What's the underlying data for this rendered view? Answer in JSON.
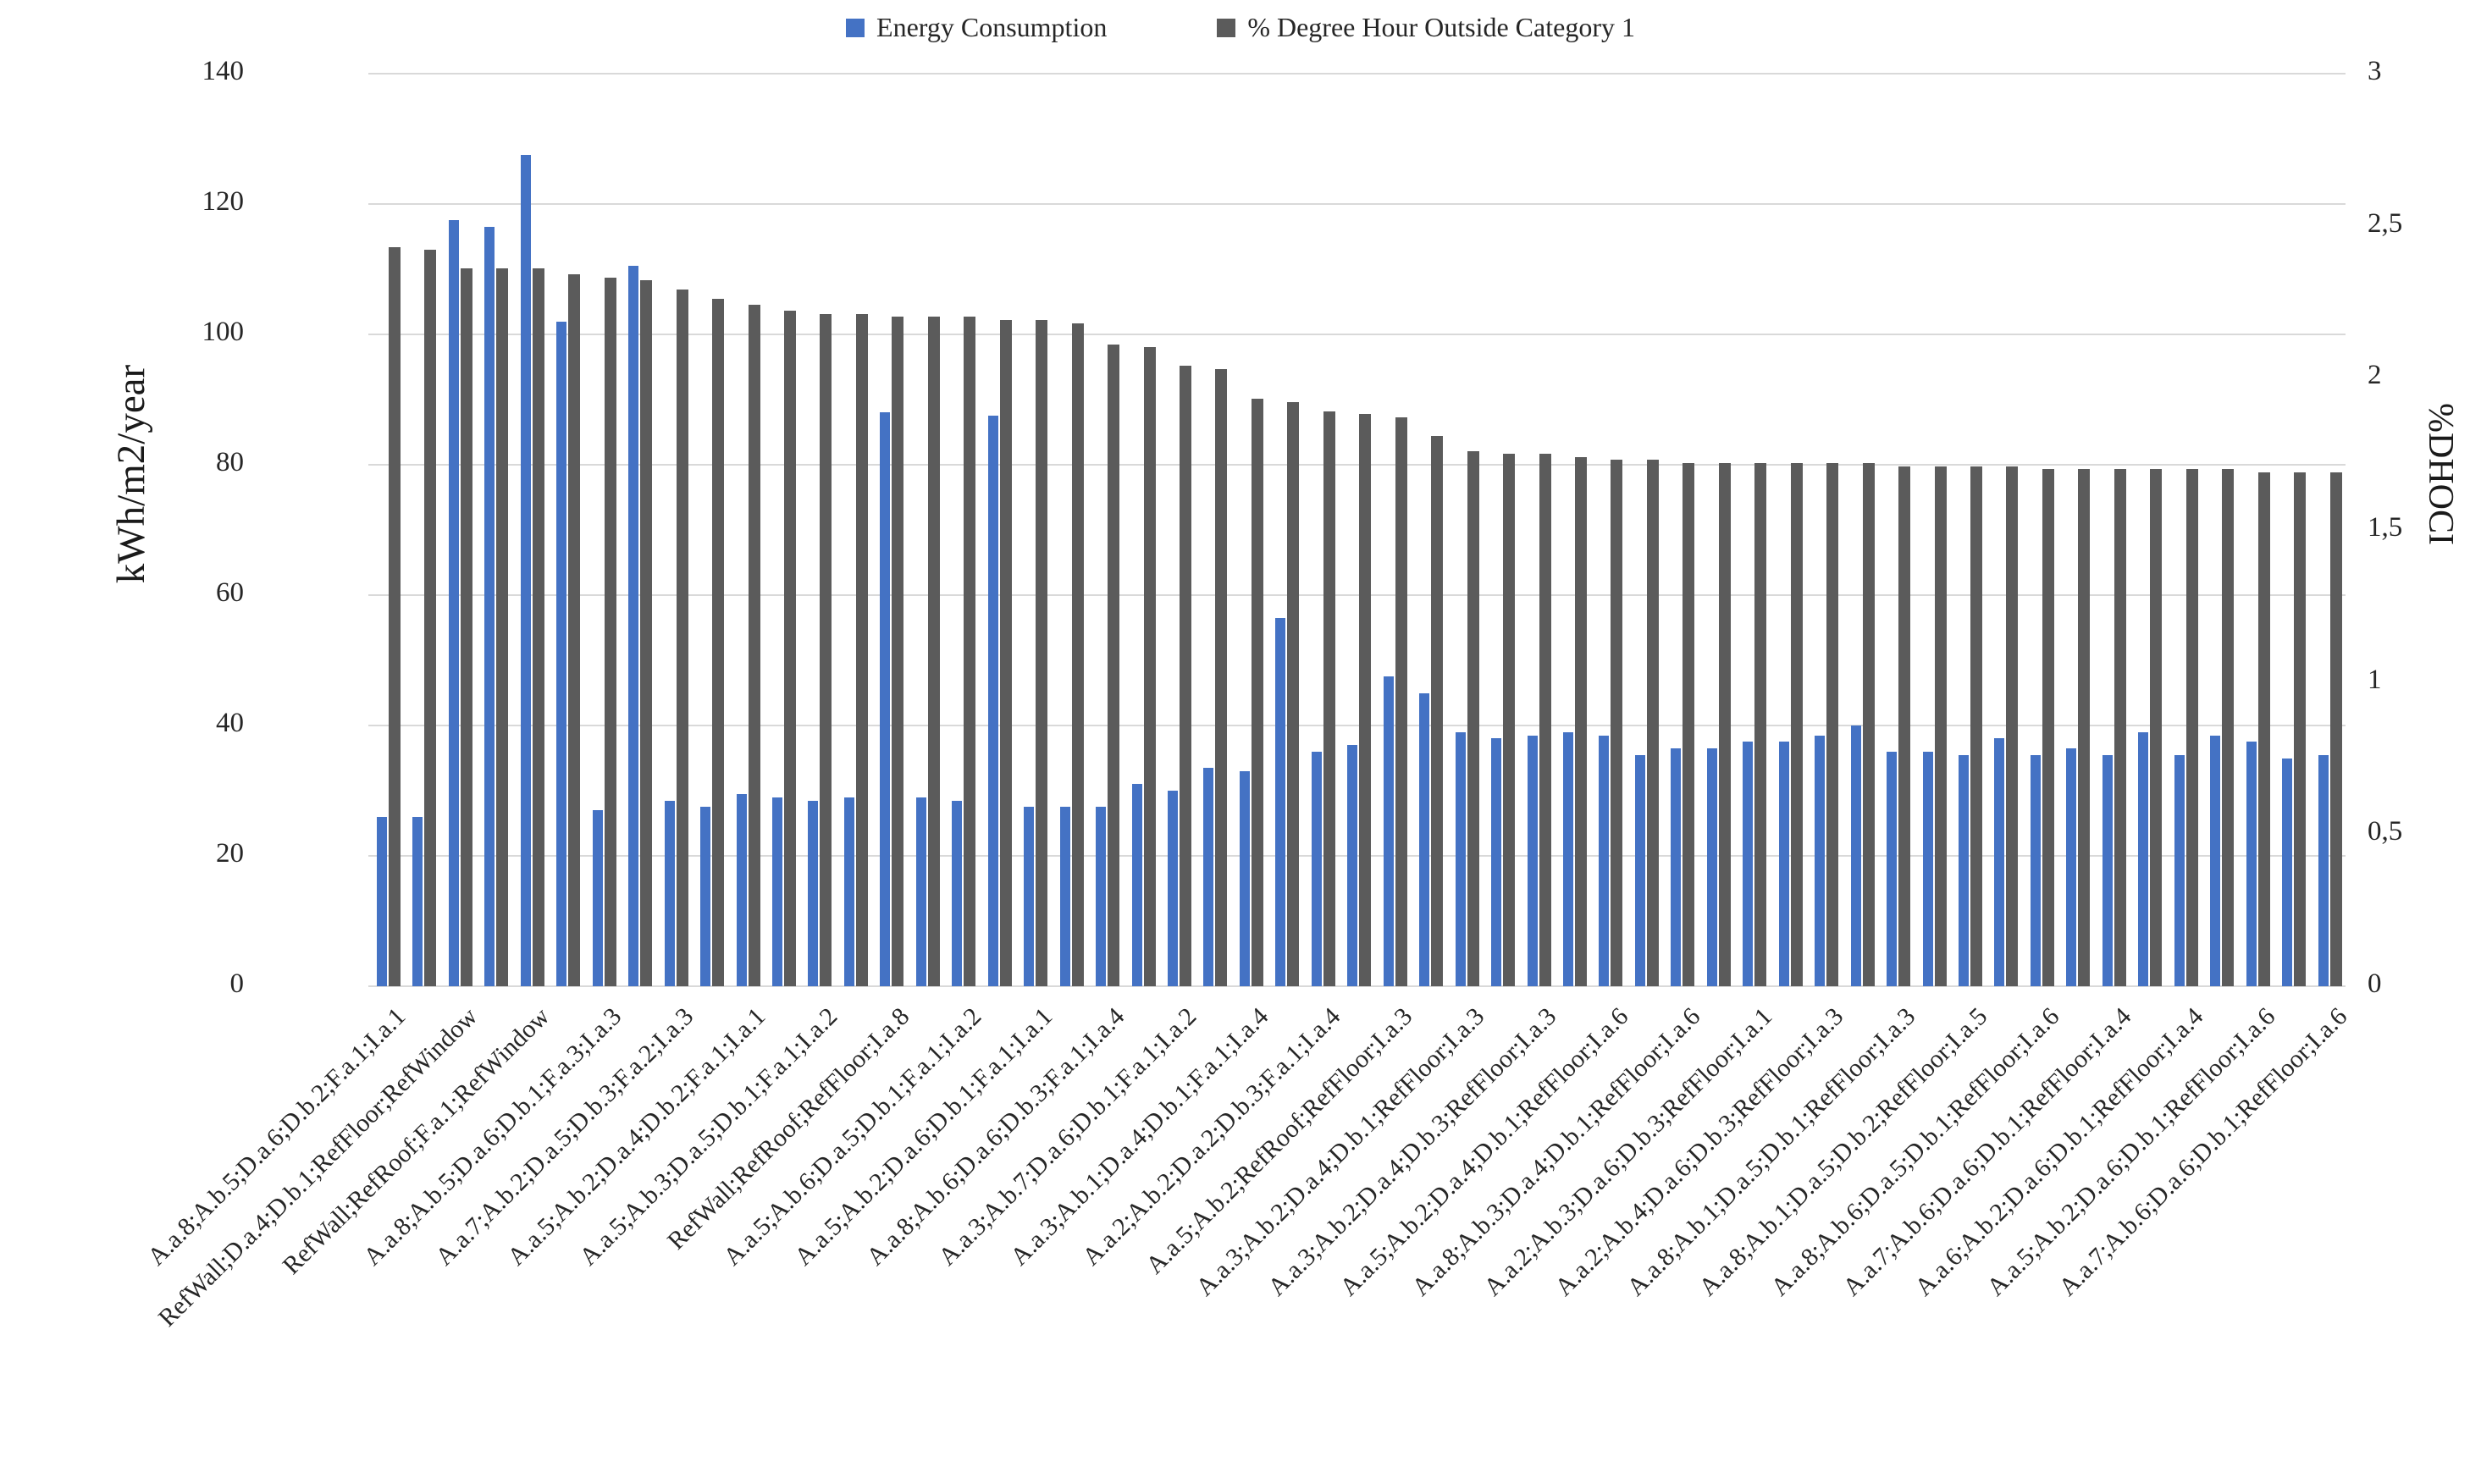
{
  "legend": {
    "items": [
      {
        "name": "energy-consumption",
        "label": "Energy Consumption",
        "color": "#4472c4"
      },
      {
        "name": "dhoci",
        "label": "% Degree Hour Outside Category 1",
        "color": "#5b5b5b"
      }
    ]
  },
  "left_axis": {
    "title": "kWh/m2/year",
    "tick_labels": [
      "140",
      "120",
      "100",
      "80",
      "60",
      "40",
      "20",
      "0"
    ],
    "tick_values": [
      140,
      120,
      100,
      80,
      60,
      40,
      20,
      0
    ],
    "max": 140,
    "min": 0
  },
  "right_axis": {
    "title": "%DHOCI",
    "tick_labels": [
      "3",
      "2,5",
      "2",
      "1,5",
      "1",
      "0,5",
      "0"
    ],
    "tick_values": [
      3,
      2.5,
      2,
      1.5,
      1,
      0.5,
      0
    ],
    "max": 3,
    "min": 0
  },
  "chart_data": {
    "type": "bar",
    "dual_axis": true,
    "grid": "horizontal",
    "legend_position": "top-center",
    "num_categories": 55,
    "x_label_interval": 2,
    "x_tick_labels": [
      "A.a.8;A.b.5;D.a.6;D.b.2;F.a.1;I.a.1",
      "RefWall;D.a.4;D.b.1;RefFloor;RefWindow",
      "RefWall;RefRoof;F.a.1;RefWindow",
      "A.a.8;A.b.5;D.a.6;D.b.1;F.a.3;I.a.3",
      "A.a.7;A.b.2;D.a.5;D.b.3;F.a.2;I.a.3",
      "A.a.5;A.b.2;D.a.4;D.b.2;F.a.1;I.a.1",
      "A.a.5;A.b.3;D.a.5;D.b.1;F.a.1;I.a.2",
      "RefWall;RefRoof;RefFloor;I.a.8",
      "A.a.5;A.b.6;D.a.5;D.b.1;F.a.1;I.a.2",
      "A.a.5;A.b.2;D.a.6;D.b.1;F.a.1;I.a.1",
      "A.a.8;A.b.6;D.a.6;D.b.3;F.a.1;I.a.4",
      "A.a.3;A.b.7;D.a.6;D.b.1;F.a.1;I.a.2",
      "A.a.3;A.b.1;D.a.4;D.b.1;F.a.1;I.a.4",
      "A.a.2;A.b.2;D.a.2;D.b.3;F.a.1;I.a.4",
      "A.a.5;A.b.2;RefRoof;RefFloor;I.a.3",
      "A.a.3;A.b.2;D.a.4;D.b.1;RefFloor;I.a.3",
      "A.a.3;A.b.2;D.a.4;D.b.3;RefFloor;I.a.3",
      "A.a.5;A.b.2;D.a.4;D.b.1;RefFloor;I.a.6",
      "A.a.8;A.b.3;D.a.4;D.b.1;RefFloor;I.a.6",
      "A.a.2;A.b.3;D.a.6;D.b.3;RefFloor;I.a.1",
      "A.a.2;A.b.4;D.a.6;D.b.3;RefFloor;I.a.3",
      "A.a.8;A.b.1;D.a.5;D.b.1;RefFloor;I.a.3",
      "A.a.8;A.b.1;D.a.5;D.b.2;RefFloor;I.a.5",
      "A.a.8;A.b.6;D.a.5;D.b.1;RefFloor;I.a.6",
      "A.a.7;A.b.6;D.a.6;D.b.1;RefFloor;I.a.4",
      "A.a.6;A.b.2;D.a.6;D.b.1;RefFloor;I.a.4",
      "A.a.5;A.b.2;D.a.6;D.b.1;RefFloor;I.a.6",
      "A.a.7;A.b.6;D.a.6;D.b.1;RefFloor;I.a.6"
    ],
    "series": [
      {
        "name": "Energy Consumption",
        "axis": "left",
        "unit": "kWh/m2/year",
        "color": "#4472c4",
        "values": [
          26,
          26,
          117.5,
          116.5,
          127.5,
          102,
          27,
          110.5,
          28.5,
          27.5,
          29.5,
          29,
          28.5,
          29,
          88,
          29,
          28.5,
          87.5,
          27.5,
          27.5,
          27.5,
          31,
          30,
          33.5,
          33,
          56.5,
          36,
          37,
          47.5,
          45,
          39,
          38,
          38.5,
          39,
          38.5,
          35.5,
          36.5,
          36.5,
          37.5,
          37.5,
          38.5,
          40,
          36,
          36,
          35.5,
          38,
          35.5,
          36.5,
          35.5,
          39,
          35.5,
          38.5,
          37.5,
          35,
          35.5
        ]
      },
      {
        "name": "% Degree Hour Outside Category 1",
        "axis": "right",
        "unit": "%DHOCI",
        "color": "#5b5b5b",
        "values": [
          2.43,
          2.42,
          2.36,
          2.36,
          2.36,
          2.34,
          2.33,
          2.32,
          2.29,
          2.26,
          2.24,
          2.22,
          2.21,
          2.21,
          2.2,
          2.2,
          2.2,
          2.19,
          2.19,
          2.18,
          2.11,
          2.1,
          2.04,
          2.03,
          1.93,
          1.92,
          1.89,
          1.88,
          1.87,
          1.81,
          1.76,
          1.75,
          1.75,
          1.74,
          1.73,
          1.73,
          1.72,
          1.72,
          1.72,
          1.72,
          1.72,
          1.72,
          1.71,
          1.71,
          1.71,
          1.71,
          1.7,
          1.7,
          1.7,
          1.7,
          1.7,
          1.7,
          1.69,
          1.69,
          1.69
        ]
      }
    ],
    "ylim_left": [
      0,
      140
    ],
    "ylim_right": [
      0,
      3
    ]
  }
}
